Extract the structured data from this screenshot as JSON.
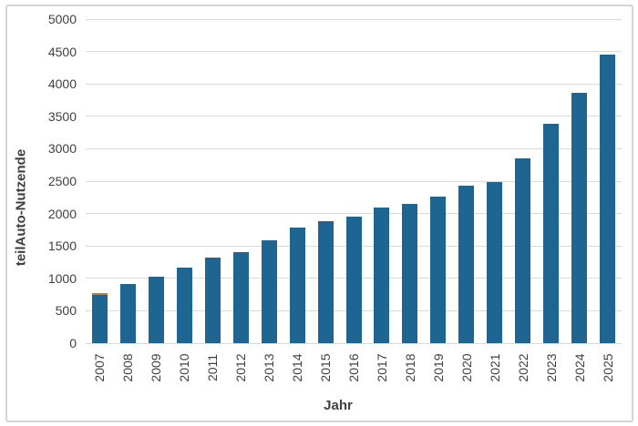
{
  "frame": {
    "border_color": "#d4d4d4",
    "background_color": "#ffffff"
  },
  "chart_data": {
    "type": "bar",
    "title": "",
    "xlabel": "Jahr",
    "ylabel": "teilAuto-Nutzende",
    "categories": [
      "2007",
      "2008",
      "2009",
      "2010",
      "2011",
      "2012",
      "2013",
      "2014",
      "2015",
      "2016",
      "2017",
      "2018",
      "2019",
      "2020",
      "2021",
      "2022",
      "2023",
      "2024",
      "2025"
    ],
    "values": [
      770,
      910,
      1020,
      1170,
      1320,
      1410,
      1590,
      1790,
      1880,
      1950,
      2090,
      2150,
      2260,
      2430,
      2480,
      2850,
      3390,
      3860,
      4450
    ],
    "ylim": [
      0,
      5000
    ],
    "ytick_step": 500,
    "yticks": [
      0,
      500,
      1000,
      1500,
      2000,
      2500,
      3000,
      3500,
      4000,
      4500,
      5000
    ],
    "grid": true,
    "legend": "none",
    "bar_color": "#1f6591",
    "gridline_color": "#d9d9d9",
    "tick_label_color": "#404040",
    "axis_title_color": "#404040",
    "annotations": [
      {
        "category": "2007",
        "note": "thin orange cap segment on top of 2007 bar",
        "cap_color": "#bd7a43",
        "cap_value": 25
      }
    ]
  }
}
